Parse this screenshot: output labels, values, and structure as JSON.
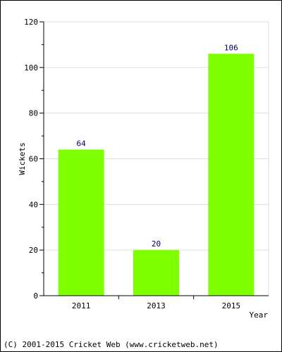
{
  "chart_data": {
    "type": "bar",
    "title": "",
    "xlabel": "Year",
    "ylabel": "Wickets",
    "categories": [
      "2011",
      "2013",
      "2015"
    ],
    "values": [
      64,
      20,
      106
    ],
    "data_labels": [
      "64",
      "20",
      "106"
    ],
    "ylim": [
      0,
      120
    ],
    "yticks": [
      0,
      20,
      40,
      60,
      80,
      100,
      120
    ],
    "ytick_labels": [
      "0",
      "20",
      "40",
      "60",
      "80",
      "100",
      "120"
    ],
    "grid": true,
    "bar_color": "#80ff00",
    "label_color": "#000066",
    "grid_color": "#dddddd"
  },
  "footer": {
    "copyright": "(C) 2001-2015 Cricket Web (www.cricketweb.net)"
  }
}
